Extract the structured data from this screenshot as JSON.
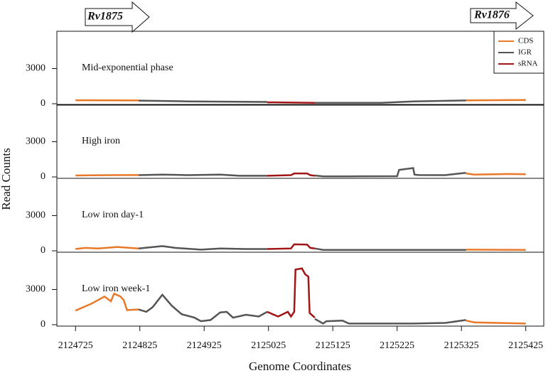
{
  "genes": [
    "Rv1875",
    "Rv1876"
  ],
  "axes": {
    "xlabel": "Genome Coordinates",
    "ylabel": "Read Counts",
    "xlim": [
      2124696,
      2125453
    ],
    "xticks": [
      2124725,
      2124825,
      2124925,
      2125025,
      2125125,
      2125225,
      2125325,
      2125425
    ]
  },
  "chart_data": [
    {
      "type": "line",
      "label": "Mid-exponential phase",
      "ylim": [
        -120,
        6180
      ],
      "yticks": [
        0,
        3000
      ],
      "legend": "upper right",
      "series": [
        {
          "name": "CDS",
          "color": "#e8782a",
          "x": [
            2124725,
            2124823,
            null,
            2125332,
            2125425
          ],
          "values": [
            300,
            280,
            null,
            290,
            320
          ]
        },
        {
          "name": "IGR",
          "color": "#555555",
          "x": [
            2124823,
            2124900,
            2125023,
            null,
            2125097,
            2125200,
            2125250,
            2125332
          ],
          "values": [
            270,
            200,
            150,
            null,
            80,
            80,
            200,
            280
          ]
        },
        {
          "name": "sRNA",
          "color": "#a01515",
          "x": [
            2125023,
            2125097
          ],
          "values": [
            120,
            80
          ]
        }
      ]
    },
    {
      "type": "line",
      "label": "High iron",
      "ylim": [
        -120,
        6180
      ],
      "yticks": [
        0,
        3000
      ],
      "series": [
        {
          "name": "CDS",
          "color": "#e8782a",
          "x": [
            2124725,
            2124780,
            2124823,
            null,
            2125332,
            2125345,
            2125400,
            2125425
          ],
          "values": [
            120,
            150,
            160,
            null,
            300,
            200,
            250,
            230
          ]
        },
        {
          "name": "IGR",
          "color": "#555555",
          "x": [
            2124823,
            2124860,
            2124900,
            2124950,
            2124980,
            2125023,
            null,
            2125097,
            2125110,
            2125150,
            2125225,
            2125228,
            2125250,
            2125252,
            2125258,
            2125300,
            2125332
          ],
          "values": [
            150,
            200,
            150,
            200,
            100,
            100,
            null,
            120,
            50,
            50,
            60,
            600,
            760,
            200,
            160,
            150,
            350
          ]
        },
        {
          "name": "sRNA",
          "color": "#a01515",
          "x": [
            2125023,
            2125060,
            2125065,
            2125085,
            2125090,
            2125097
          ],
          "values": [
            100,
            150,
            300,
            300,
            150,
            100
          ]
        }
      ]
    },
    {
      "type": "line",
      "label": "Low iron day-1",
      "ylim": [
        -120,
        6180
      ],
      "yticks": [
        0,
        3000
      ],
      "series": [
        {
          "name": "CDS",
          "color": "#e8782a",
          "x": [
            2124725,
            2124740,
            2124760,
            2124790,
            2124823,
            null,
            2125332,
            2125425
          ],
          "values": [
            150,
            250,
            200,
            330,
            200,
            null,
            100,
            80
          ]
        },
        {
          "name": "IGR",
          "color": "#555555",
          "x": [
            2124823,
            2124860,
            2124880,
            2124920,
            2124950,
            2124990,
            2125023,
            null,
            2125097,
            2125110,
            2125332
          ],
          "values": [
            200,
            400,
            250,
            100,
            200,
            150,
            150,
            null,
            200,
            80,
            80
          ]
        },
        {
          "name": "sRNA",
          "color": "#a01515",
          "x": [
            2125023,
            2125060,
            2125065,
            2125085,
            2125090,
            2125097
          ],
          "values": [
            150,
            200,
            550,
            530,
            250,
            200
          ]
        }
      ]
    },
    {
      "type": "line",
      "label": "Low iron week-1",
      "ylim": [
        -120,
        6180
      ],
      "yticks": [
        0,
        3000
      ],
      "series": [
        {
          "name": "CDS",
          "color": "#e8782a",
          "x": [
            2124725,
            2124750,
            2124770,
            2124780,
            2124785,
            2124795,
            2124800,
            2124805,
            2124823,
            null,
            2125332,
            2125345,
            2125380,
            2125425
          ],
          "values": [
            1200,
            1800,
            2400,
            2000,
            2650,
            2400,
            2100,
            1250,
            1300,
            null,
            350,
            200,
            150,
            100
          ]
        },
        {
          "name": "IGR",
          "color": "#555555",
          "x": [
            2124823,
            2124835,
            2124845,
            2124860,
            2124875,
            2124890,
            2124910,
            2124920,
            2124935,
            2124950,
            2124960,
            2124970,
            2124990,
            2125010,
            2125023,
            null,
            2125097,
            2125110,
            2125115,
            2125140,
            2125150,
            2125250,
            2125300,
            2125332
          ],
          "values": [
            1300,
            1100,
            1500,
            2550,
            1600,
            900,
            600,
            300,
            400,
            1050,
            1100,
            600,
            850,
            700,
            1100,
            null,
            500,
            100,
            300,
            350,
            100,
            100,
            150,
            400
          ]
        },
        {
          "name": "sRNA",
          "color": "#a01515",
          "x": [
            2125023,
            2125040,
            2125055,
            2125060,
            2125065,
            2125067,
            2125077,
            2125082,
            2125087,
            2125089,
            2125097
          ],
          "values": [
            1100,
            700,
            1100,
            700,
            1100,
            4700,
            4800,
            4300,
            4100,
            1000,
            600
          ]
        }
      ]
    }
  ]
}
